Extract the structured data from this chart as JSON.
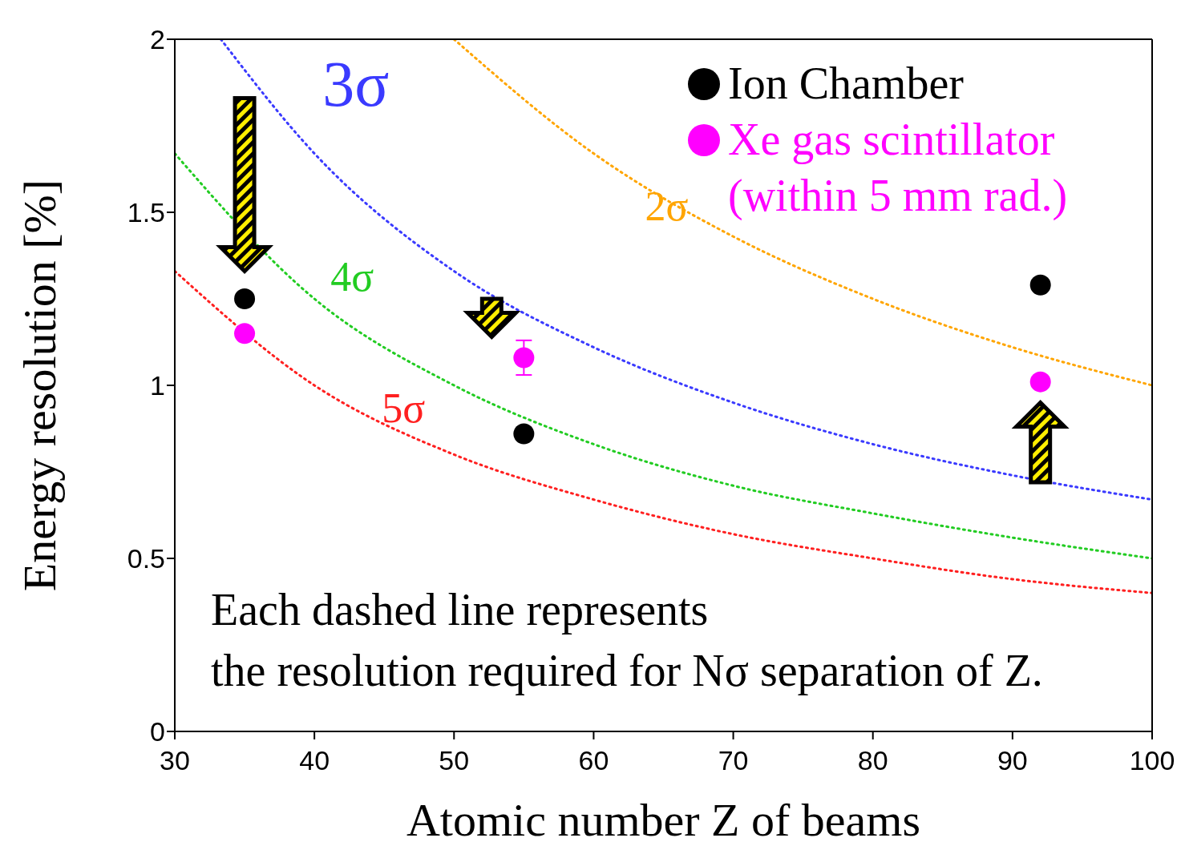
{
  "chart_data": {
    "type": "scatter",
    "xlabel": "Atomic number Z of beams",
    "ylabel": "Energy resolution [%]",
    "xlim": [
      30,
      100
    ],
    "xticks": [
      30,
      40,
      50,
      60,
      70,
      80,
      90,
      100
    ],
    "ylim": [
      0,
      2
    ],
    "yticks": [
      0,
      0.5,
      1,
      1.5,
      2
    ],
    "grid": false,
    "legend": "top right",
    "marker": "circle",
    "annotations": [
      "Each dashed line represents",
      "the resolution required for Nσ separation of Z."
    ],
    "series": [
      {
        "name": "Ion Chamber",
        "color": "#000000",
        "x": [
          35,
          55,
          92
        ],
        "values": [
          1.25,
          0.86,
          1.29
        ]
      },
      {
        "name": "Xe gas scintillator (within 5 mm rad.)",
        "color": "#ff00ff",
        "x": [
          35,
          55,
          92
        ],
        "values": [
          1.15,
          1.08,
          1.01
        ],
        "errors": [
          null,
          0.05,
          null
        ]
      },
      {
        "name": "2σ",
        "type": "line",
        "color": "#ffa500",
        "line_style": "dotted",
        "marker": "none",
        "x": [
          50,
          60,
          70,
          80,
          90,
          100
        ],
        "values": [
          2.0,
          1.67,
          1.43,
          1.25,
          1.11,
          1.0
        ]
      },
      {
        "name": "3σ",
        "type": "line",
        "color": "#3a3aff",
        "line_style": "dotted",
        "marker": "none",
        "x": [
          33.3,
          40,
          50,
          60,
          70,
          80,
          90,
          100
        ],
        "values": [
          2.0,
          1.67,
          1.33,
          1.11,
          0.95,
          0.83,
          0.74,
          0.67
        ]
      },
      {
        "name": "4σ",
        "type": "line",
        "color": "#22cc22",
        "line_style": "dotted",
        "marker": "none",
        "x": [
          30,
          40,
          50,
          60,
          70,
          80,
          90,
          100
        ],
        "values": [
          1.67,
          1.25,
          1.0,
          0.83,
          0.71,
          0.63,
          0.56,
          0.5
        ]
      },
      {
        "name": "5σ",
        "type": "line",
        "color": "#ff2020",
        "line_style": "dotted",
        "marker": "none",
        "x": [
          30,
          40,
          50,
          60,
          70,
          80,
          90,
          100
        ],
        "values": [
          1.33,
          1.0,
          0.8,
          0.67,
          0.57,
          0.5,
          0.44,
          0.4
        ]
      }
    ]
  }
}
